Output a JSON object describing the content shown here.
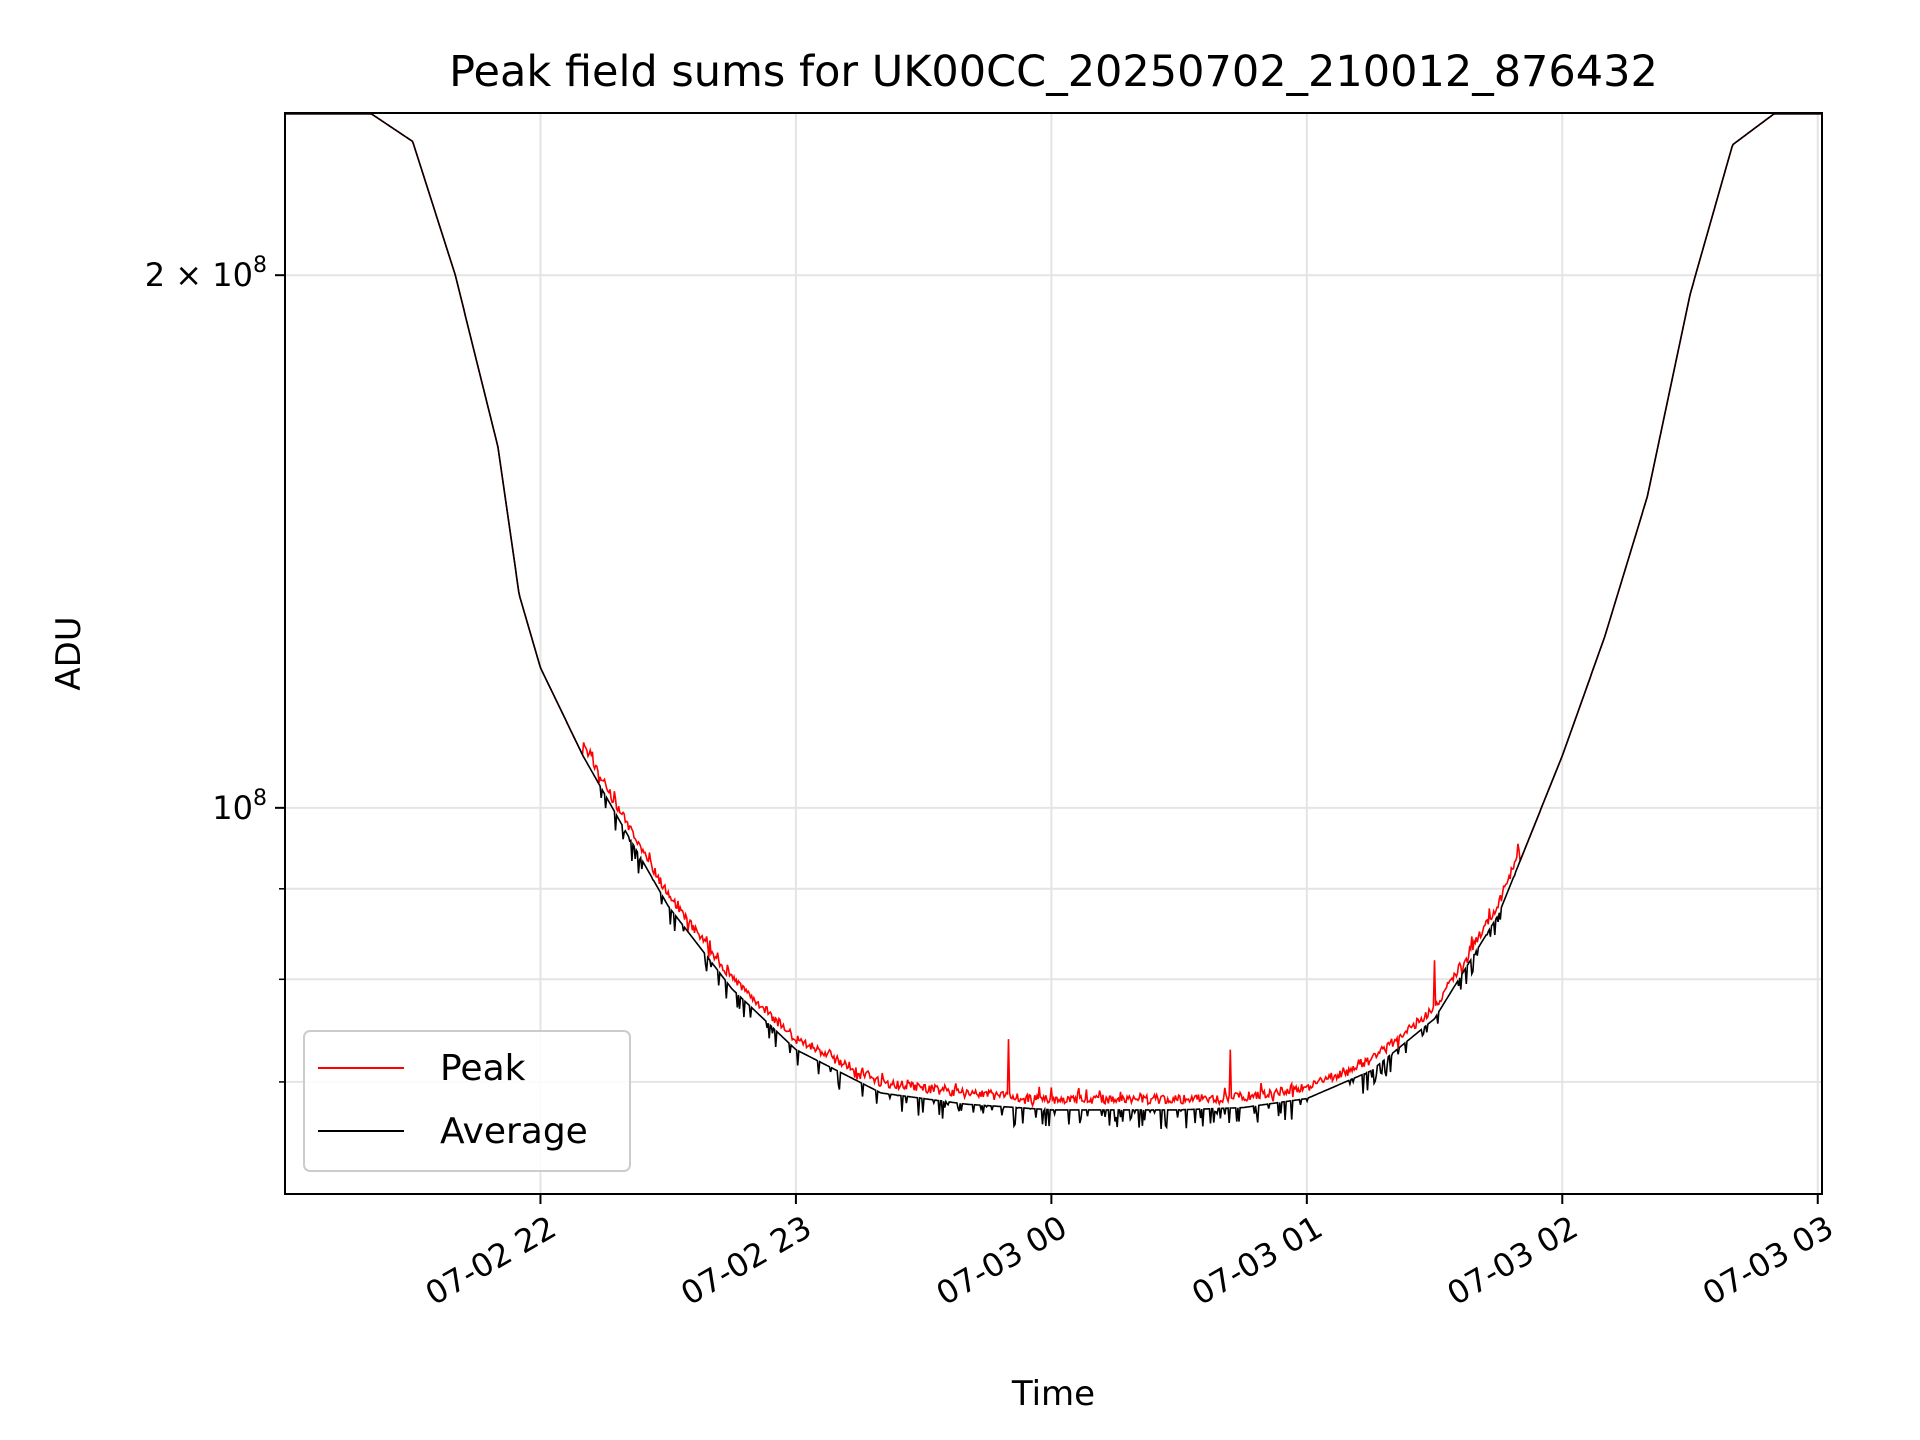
{
  "chart_data": {
    "type": "line",
    "title": "Peak field sums for UK00CC_20250702_210012_876432",
    "xlabel": "Time",
    "ylabel": "ADU",
    "y_scale": "log",
    "ylim": [
      60500000,
      247000000
    ],
    "xlim": [
      "07-02 21:00",
      "07-03 03:01"
    ],
    "grid": true,
    "legend_position": "lower-left",
    "x_ticks": [
      "07-02 22",
      "07-02 23",
      "07-03 00",
      "07-03 01",
      "07-03 02",
      "07-03 03"
    ],
    "y_tick_labels": [
      {
        "value": 200000000,
        "mantissa": "2",
        "exponent": "8"
      },
      {
        "value": 100000000,
        "mantissa": "",
        "exponent": "8"
      }
    ],
    "y_minor_ticks": [
      60000000,
      70000000,
      80000000,
      90000000
    ],
    "series": [
      {
        "name": "Peak",
        "color": "#ff0000"
      },
      {
        "name": "Average",
        "color": "#000000"
      }
    ],
    "average_profile": {
      "x": [
        "07-02 21:00",
        "07-02 21:20",
        "07-02 21:30",
        "07-02 21:40",
        "07-02 21:50",
        "07-02 21:55",
        "07-02 22:00",
        "07-02 22:10",
        "07-02 22:20",
        "07-02 22:30",
        "07-02 22:45",
        "07-02 23:00",
        "07-02 23:20",
        "07-02 23:40",
        "07-03 00:00",
        "07-03 00:30",
        "07-03 00:45",
        "07-03 01:00",
        "07-03 01:15",
        "07-03 01:30",
        "07-03 01:45",
        "07-03 02:00",
        "07-03 02:10",
        "07-03 02:20",
        "07-03 02:30",
        "07-03 02:40",
        "07-03 02:50",
        "07-03 03:01"
      ],
      "y": [
        247000000,
        247000000,
        238000000,
        200000000,
        160000000,
        132000000,
        120000000,
        107000000,
        97000000,
        88000000,
        79000000,
        73000000,
        69000000,
        68000000,
        67500000,
        67500000,
        67700000,
        68500000,
        71000000,
        76000000,
        87000000,
        107000000,
        125000000,
        150000000,
        195000000,
        237000000,
        247000000,
        247000000
      ]
    },
    "peak_spikes": [
      {
        "x": "07-02 23:50",
        "y": 74000000
      },
      {
        "x": "07-03 00:42",
        "y": 73000000
      },
      {
        "x": "07-03 01:30",
        "y": 82000000
      }
    ]
  }
}
